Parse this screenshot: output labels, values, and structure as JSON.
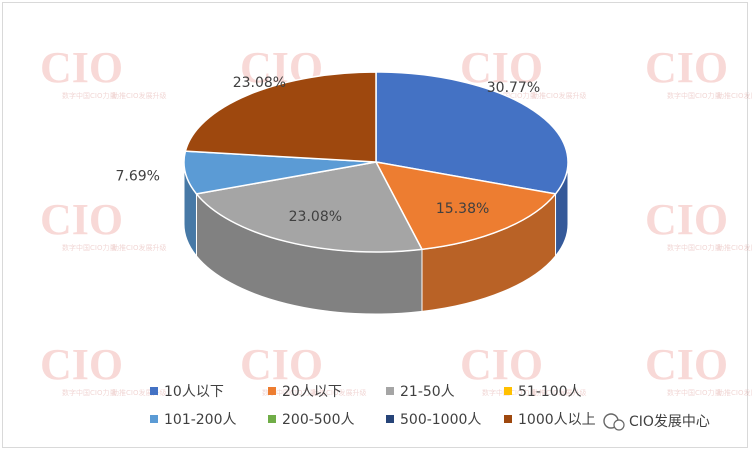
{
  "chart_data": {
    "type": "pie",
    "title": "",
    "categories": [
      "10人以下",
      "20人以下",
      "21-50人",
      "51-100人",
      "101-200人",
      "200-500人",
      "500-1000人",
      "1000人以上"
    ],
    "values": [
      30.77,
      15.38,
      23.08,
      0,
      7.69,
      0,
      0,
      23.08
    ],
    "labels": [
      "30.77%",
      "15.38%",
      "23.08%",
      "",
      "7.69%",
      "",
      "",
      "23.08%"
    ],
    "colors": [
      "#4472C4",
      "#ED7D31",
      "#A5A5A5",
      "#FFC000",
      "#5B9BD5",
      "#70AD47",
      "#264478",
      "#9E480E"
    ],
    "legend_position": "bottom",
    "legend": [
      "10人以下",
      "20人以下",
      "21-50人",
      "51-100人",
      "101-200人",
      "200-500人",
      "500-1000人",
      "1000人以上"
    ],
    "style": "3d"
  },
  "watermark": {
    "text": "CIO",
    "caption_left": "数字中国CIO力量",
    "caption_right": "助推CIO发展升级"
  },
  "brand_caption": "CIO发展中心"
}
